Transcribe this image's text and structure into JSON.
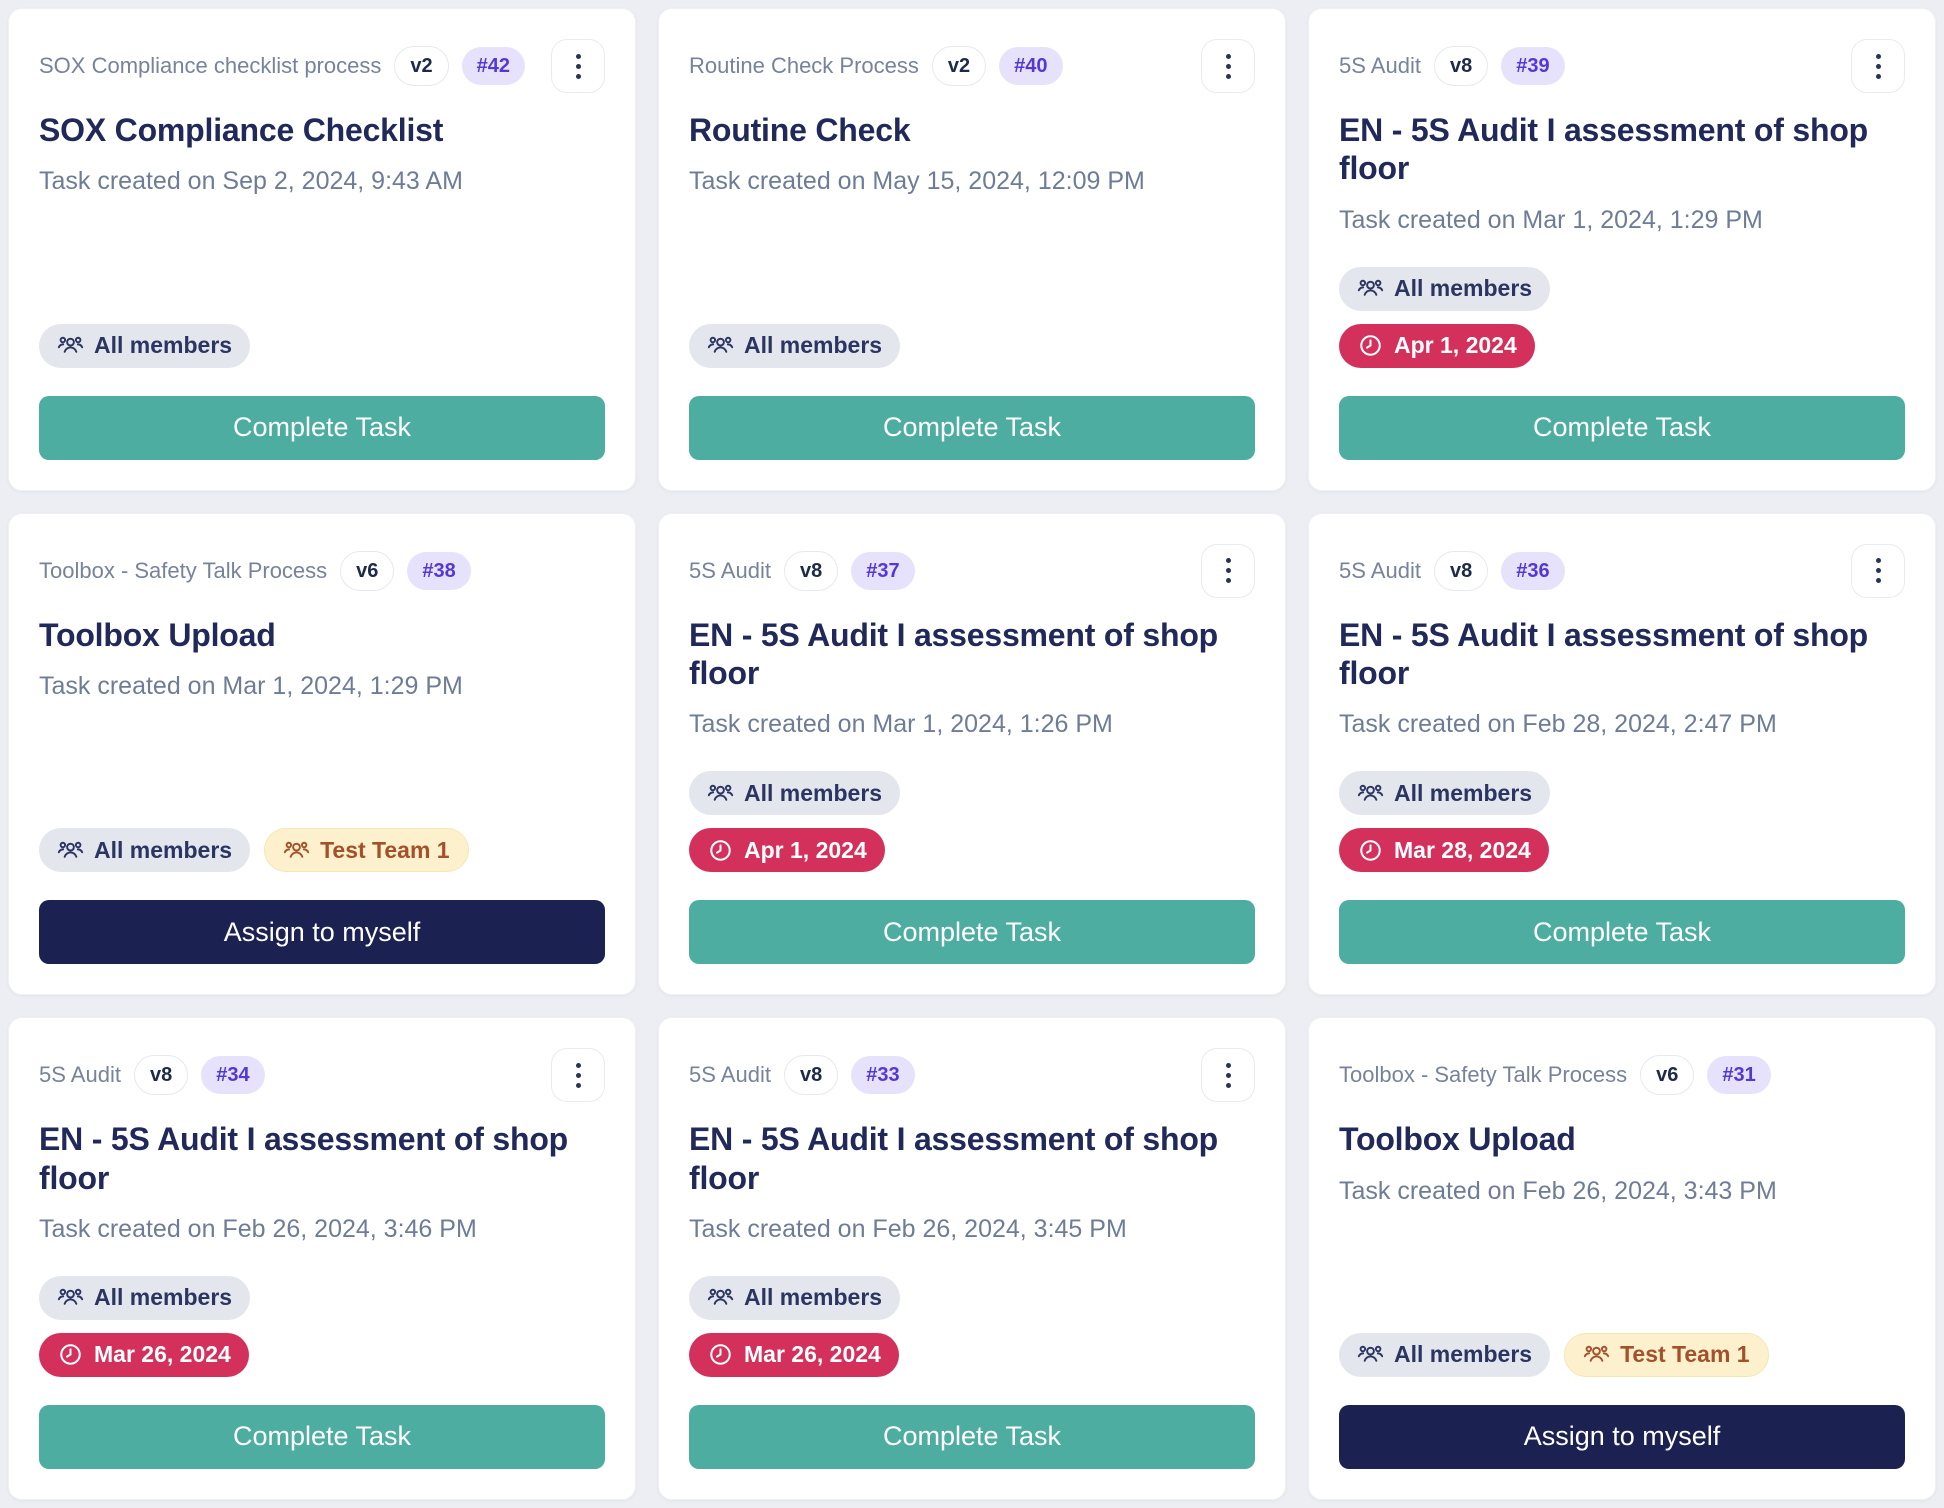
{
  "colors": {
    "page_bg": "#eceef3",
    "card_bg": "#ffffff",
    "title_navy": "#20295a",
    "muted_text": "#6e7d95",
    "number_badge_bg": "#e7e2fb",
    "number_badge_fg": "#5438d5",
    "members_badge_bg": "#e4e6ee",
    "members_badge_fg": "#2a3560",
    "date_badge_bg": "#d4305c",
    "team_badge_bg": "#fdf1cd",
    "team_badge_fg": "#a3512b",
    "complete_button_teal": "#4cada0",
    "assign_button_navy": "#1b2151"
  },
  "icons": {
    "members": "users-icon",
    "date": "clock-icon",
    "menu": "kebab-menu-icon"
  },
  "cards": [
    {
      "process": "SOX Compliance checklist process",
      "version": "v2",
      "number": "#42",
      "has_menu": true,
      "title": "SOX Compliance Checklist",
      "created": "Task created on Sep 2, 2024, 9:43 AM",
      "badge_rows": [
        [
          {
            "type": "members",
            "label": "All members"
          }
        ]
      ],
      "action": {
        "label": "Complete Task",
        "variant": "teal"
      }
    },
    {
      "process": "Routine Check Process",
      "version": "v2",
      "number": "#40",
      "has_menu": true,
      "title": "Routine Check",
      "created": "Task created on May 15, 2024, 12:09 PM",
      "badge_rows": [
        [
          {
            "type": "members",
            "label": "All members"
          }
        ]
      ],
      "action": {
        "label": "Complete Task",
        "variant": "teal"
      }
    },
    {
      "process": "5S Audit",
      "version": "v8",
      "number": "#39",
      "has_menu": true,
      "title": "EN - 5S Audit I assessment of shop floor",
      "created": "Task created on Mar 1, 2024, 1:29 PM",
      "badge_rows": [
        [
          {
            "type": "members",
            "label": "All members"
          }
        ],
        [
          {
            "type": "date",
            "label": "Apr 1, 2024"
          }
        ]
      ],
      "action": {
        "label": "Complete Task",
        "variant": "teal"
      }
    },
    {
      "process": "Toolbox - Safety Talk Process",
      "version": "v6",
      "number": "#38",
      "has_menu": false,
      "title": "Toolbox Upload",
      "created": "Task created on Mar 1, 2024, 1:29 PM",
      "badge_rows": [
        [
          {
            "type": "members",
            "label": "All members"
          },
          {
            "type": "team",
            "label": "Test Team 1"
          }
        ]
      ],
      "action": {
        "label": "Assign to myself",
        "variant": "navy"
      }
    },
    {
      "process": "5S Audit",
      "version": "v8",
      "number": "#37",
      "has_menu": true,
      "title": "EN - 5S Audit I assessment of shop floor",
      "created": "Task created on Mar 1, 2024, 1:26 PM",
      "badge_rows": [
        [
          {
            "type": "members",
            "label": "All members"
          }
        ],
        [
          {
            "type": "date",
            "label": "Apr 1, 2024"
          }
        ]
      ],
      "action": {
        "label": "Complete Task",
        "variant": "teal"
      }
    },
    {
      "process": "5S Audit",
      "version": "v8",
      "number": "#36",
      "has_menu": true,
      "title": "EN - 5S Audit I assessment of shop floor",
      "created": "Task created on Feb 28, 2024, 2:47 PM",
      "badge_rows": [
        [
          {
            "type": "members",
            "label": "All members"
          }
        ],
        [
          {
            "type": "date",
            "label": "Mar 28, 2024"
          }
        ]
      ],
      "action": {
        "label": "Complete Task",
        "variant": "teal"
      }
    },
    {
      "process": "5S Audit",
      "version": "v8",
      "number": "#34",
      "has_menu": true,
      "title": "EN - 5S Audit I assessment of shop floor",
      "created": "Task created on Feb 26, 2024, 3:46 PM",
      "badge_rows": [
        [
          {
            "type": "members",
            "label": "All members"
          }
        ],
        [
          {
            "type": "date",
            "label": "Mar 26, 2024"
          }
        ]
      ],
      "action": {
        "label": "Complete Task",
        "variant": "teal"
      }
    },
    {
      "process": "5S Audit",
      "version": "v8",
      "number": "#33",
      "has_menu": true,
      "title": "EN - 5S Audit I assessment of shop floor",
      "created": "Task created on Feb 26, 2024, 3:45 PM",
      "badge_rows": [
        [
          {
            "type": "members",
            "label": "All members"
          }
        ],
        [
          {
            "type": "date",
            "label": "Mar 26, 2024"
          }
        ]
      ],
      "action": {
        "label": "Complete Task",
        "variant": "teal"
      }
    },
    {
      "process": "Toolbox - Safety Talk Process",
      "version": "v6",
      "number": "#31",
      "has_menu": false,
      "title": "Toolbox Upload",
      "created": "Task created on Feb 26, 2024, 3:43 PM",
      "badge_rows": [
        [
          {
            "type": "members",
            "label": "All members"
          },
          {
            "type": "team",
            "label": "Test Team 1"
          }
        ]
      ],
      "action": {
        "label": "Assign to myself",
        "variant": "navy"
      }
    }
  ]
}
